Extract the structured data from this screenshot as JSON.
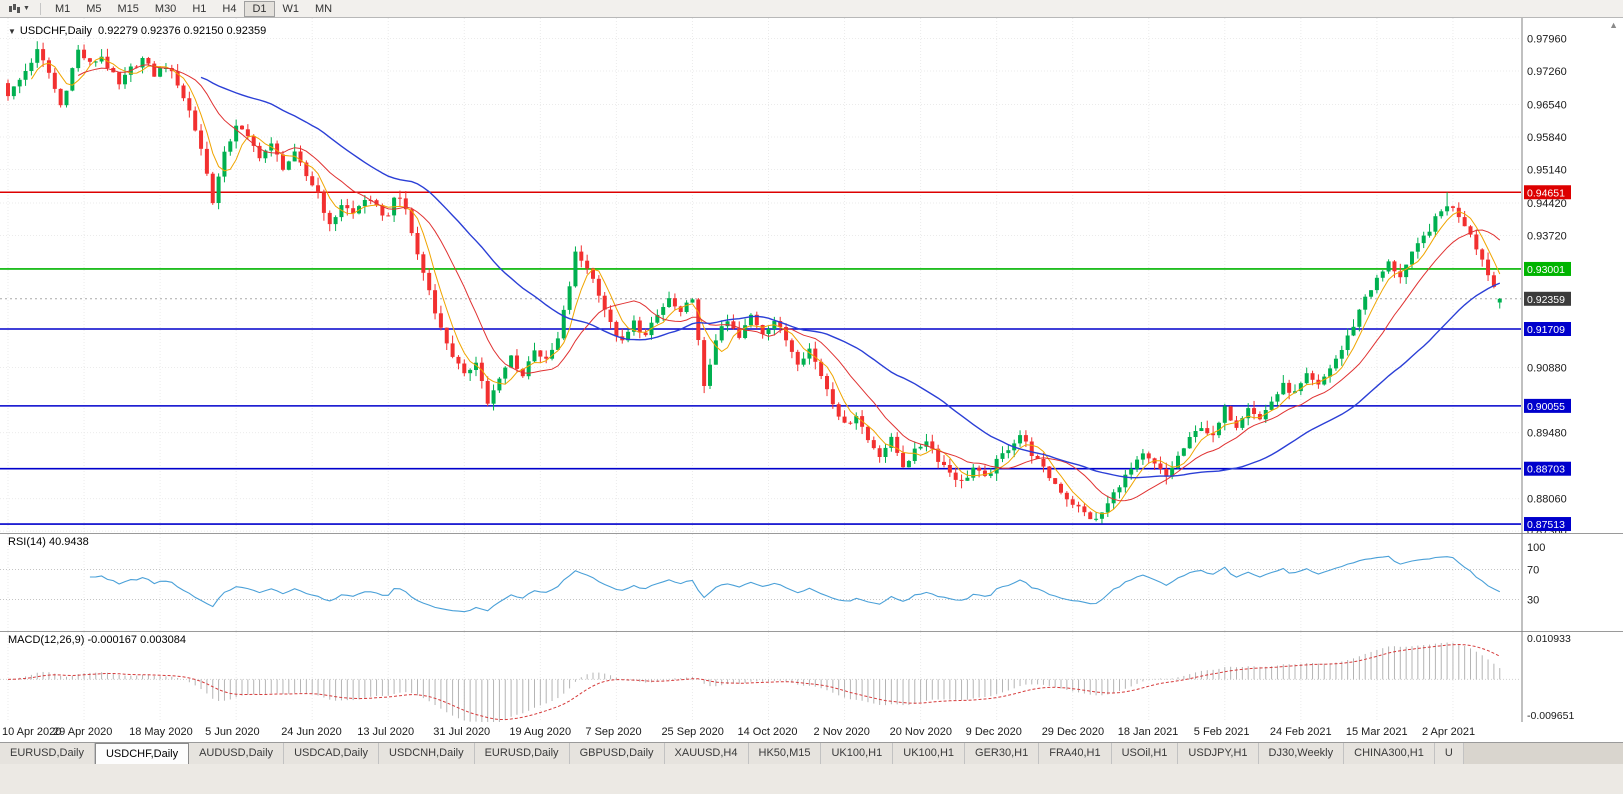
{
  "toolbar": {
    "timeframes": [
      "M1",
      "M5",
      "M15",
      "M30",
      "H1",
      "H4",
      "D1",
      "W1",
      "MN"
    ],
    "active_timeframe": "D1"
  },
  "chart": {
    "title": "USDCHF,Daily",
    "ohlc_text": "0.92279 0.92376 0.92150 0.92359"
  },
  "chart_data": {
    "type": "candlestick",
    "symbol": "USDCHF",
    "timeframe": "Daily",
    "current": {
      "open": 0.92279,
      "high": 0.92376,
      "low": 0.9215,
      "close": 0.92359
    },
    "candle_count": 256,
    "price_range": {
      "top": 0.984,
      "bottom": 0.8732
    },
    "y_axis_ticks": [
      "0.97960",
      "0.97260",
      "0.96540",
      "0.95840",
      "0.95140",
      "0.94420",
      "0.93720",
      "0.90880",
      "0.89480",
      "0.88060",
      "0.87360"
    ],
    "x_axis_dates": [
      "10 Apr 2020",
      "29 Apr 2020",
      "18 May 2020",
      "5 Jun 2020",
      "24 Jun 2020",
      "13 Jul 2020",
      "31 Jul 2020",
      "19 Aug 2020",
      "7 Sep 2020",
      "25 Sep 2020",
      "14 Oct 2020",
      "2 Nov 2020",
      "20 Nov 2020",
      "9 Dec 2020",
      "29 Dec 2020",
      "18 Jan 2021",
      "5 Feb 2021",
      "24 Feb 2021",
      "15 Mar 2021",
      "2 Apr 2021"
    ],
    "horizontal_levels": [
      {
        "price": 0.94651,
        "label": "0.94651",
        "color": "#dd0000",
        "kind": "resistance-line"
      },
      {
        "price": 0.93001,
        "label": "0.93001",
        "color": "#00b400",
        "kind": "support-line"
      },
      {
        "price": 0.92359,
        "label": "0.92359",
        "color": "#3c3c3c",
        "kind": "current-price"
      },
      {
        "price": 0.91709,
        "label": "0.91709",
        "color": "#0000cc",
        "kind": "support-line"
      },
      {
        "price": 0.90055,
        "label": "0.90055",
        "color": "#0000cc",
        "kind": "support-line"
      },
      {
        "price": 0.88703,
        "label": "0.88703",
        "color": "#0000cc",
        "kind": "support-line"
      },
      {
        "price": 0.87513,
        "label": "0.87513",
        "color": "#0000cc",
        "kind": "support-line"
      }
    ],
    "moving_averages": [
      {
        "name": "fast",
        "period": 5,
        "color": "#f0a500",
        "width": 1
      },
      {
        "name": "medium",
        "period": 13,
        "color": "#e03232",
        "width": 1
      },
      {
        "name": "slow",
        "period": 34,
        "color": "#2b3fd6",
        "width": 1.4
      }
    ],
    "colors": {
      "bull": "#00b050",
      "bear": "#f23030",
      "grid": "#ebebeb"
    },
    "close_waypoints": [
      [
        0,
        0.9672
      ],
      [
        2,
        0.9706
      ],
      [
        5,
        0.9768
      ],
      [
        7,
        0.9722
      ],
      [
        9,
        0.9652
      ],
      [
        12,
        0.977
      ],
      [
        14,
        0.974
      ],
      [
        16,
        0.9758
      ],
      [
        19,
        0.9694
      ],
      [
        21,
        0.973
      ],
      [
        23,
        0.9752
      ],
      [
        25,
        0.9718
      ],
      [
        27,
        0.9738
      ],
      [
        29,
        0.97
      ],
      [
        31,
        0.964
      ],
      [
        33,
        0.956
      ],
      [
        35,
        0.9448
      ],
      [
        37,
        0.9545
      ],
      [
        39,
        0.9612
      ],
      [
        41,
        0.958
      ],
      [
        43,
        0.9545
      ],
      [
        45,
        0.9565
      ],
      [
        47,
        0.952
      ],
      [
        49,
        0.9545
      ],
      [
        51,
        0.95
      ],
      [
        53,
        0.9465
      ],
      [
        55,
        0.939
      ],
      [
        57,
        0.944
      ],
      [
        59,
        0.9418
      ],
      [
        61,
        0.9452
      ],
      [
        63,
        0.943
      ],
      [
        65,
        0.9412
      ],
      [
        66,
        0.946
      ],
      [
        68,
        0.9428
      ],
      [
        70,
        0.933
      ],
      [
        72,
        0.9255
      ],
      [
        74,
        0.917
      ],
      [
        76,
        0.9115
      ],
      [
        78,
        0.9068
      ],
      [
        80,
        0.9105
      ],
      [
        82,
        0.9012
      ],
      [
        84,
        0.906
      ],
      [
        86,
        0.9112
      ],
      [
        88,
        0.907
      ],
      [
        90,
        0.913
      ],
      [
        92,
        0.91
      ],
      [
        94,
        0.9148
      ],
      [
        96,
        0.9265
      ],
      [
        97,
        0.9332
      ],
      [
        99,
        0.9305
      ],
      [
        101,
        0.925
      ],
      [
        103,
        0.918
      ],
      [
        105,
        0.914
      ],
      [
        107,
        0.9185
      ],
      [
        109,
        0.9155
      ],
      [
        111,
        0.92
      ],
      [
        113,
        0.9235
      ],
      [
        115,
        0.92
      ],
      [
        117,
        0.9242
      ],
      [
        119,
        0.9042
      ],
      [
        121,
        0.9152
      ],
      [
        123,
        0.9186
      ],
      [
        125,
        0.915
      ],
      [
        127,
        0.92
      ],
      [
        129,
        0.9165
      ],
      [
        131,
        0.919
      ],
      [
        133,
        0.9148
      ],
      [
        135,
        0.9102
      ],
      [
        137,
        0.9128
      ],
      [
        139,
        0.9072
      ],
      [
        141,
        0.9016
      ],
      [
        143,
        0.8962
      ],
      [
        145,
        0.8988
      ],
      [
        147,
        0.8932
      ],
      [
        149,
        0.8902
      ],
      [
        151,
        0.8932
      ],
      [
        153,
        0.8878
      ],
      [
        155,
        0.8906
      ],
      [
        157,
        0.8934
      ],
      [
        159,
        0.8892
      ],
      [
        161,
        0.8864
      ],
      [
        163,
        0.884
      ],
      [
        165,
        0.8872
      ],
      [
        167,
        0.8848
      ],
      [
        169,
        0.8884
      ],
      [
        171,
        0.8916
      ],
      [
        173,
        0.8944
      ],
      [
        175,
        0.8904
      ],
      [
        177,
        0.8868
      ],
      [
        179,
        0.8838
      ],
      [
        181,
        0.8808
      ],
      [
        184,
        0.8774
      ],
      [
        186,
        0.8758
      ],
      [
        188,
        0.8794
      ],
      [
        190,
        0.8838
      ],
      [
        192,
        0.8868
      ],
      [
        194,
        0.8898
      ],
      [
        196,
        0.8878
      ],
      [
        198,
        0.8852
      ],
      [
        200,
        0.8896
      ],
      [
        202,
        0.8932
      ],
      [
        204,
        0.8964
      ],
      [
        206,
        0.8936
      ],
      [
        208,
        0.8998
      ],
      [
        210,
        0.8964
      ],
      [
        212,
        0.9008
      ],
      [
        214,
        0.8976
      ],
      [
        216,
        0.9016
      ],
      [
        218,
        0.9048
      ],
      [
        220,
        0.9032
      ],
      [
        222,
        0.9068
      ],
      [
        224,
        0.9046
      ],
      [
        226,
        0.9088
      ],
      [
        228,
        0.9126
      ],
      [
        230,
        0.918
      ],
      [
        232,
        0.9242
      ],
      [
        234,
        0.9276
      ],
      [
        236,
        0.9312
      ],
      [
        238,
        0.9286
      ],
      [
        240,
        0.933
      ],
      [
        242,
        0.9368
      ],
      [
        244,
        0.9406
      ],
      [
        246,
        0.944
      ],
      [
        248,
        0.9416
      ],
      [
        250,
        0.9378
      ],
      [
        252,
        0.932
      ],
      [
        254,
        0.9262
      ],
      [
        255,
        0.9236
      ]
    ],
    "key_candles": [
      {
        "index": 5,
        "high": 0.979
      },
      {
        "index": 12,
        "high": 0.9782
      },
      {
        "index": 35,
        "low": 0.9438
      },
      {
        "index": 82,
        "low": 0.9005
      },
      {
        "index": 119,
        "low": 0.9033
      },
      {
        "index": 186,
        "low": 0.8757
      },
      {
        "index": 246,
        "high": 0.9465
      },
      {
        "index": 255,
        "open": 0.92279,
        "high": 0.92376,
        "low": 0.9215,
        "close": 0.92359
      }
    ],
    "indicators": [
      {
        "name": "RSI",
        "label": "RSI(14) 40.9438",
        "period": 14,
        "value": 40.9438,
        "levels": [
          "100",
          "70",
          "30"
        ],
        "color": "#4aa0d8"
      },
      {
        "name": "MACD",
        "label": "MACD(12,26,9) -0.000167 0.003084",
        "params": [
          12,
          26,
          9
        ],
        "value": -0.000167,
        "signal": 0.003084,
        "axis_labels": [
          "0.010933",
          "-0.009651"
        ],
        "hist_color": "#b4b4b4",
        "signal_color": "#d63c3c"
      }
    ]
  },
  "tabs": {
    "items": [
      {
        "label": "EURUSD,Daily"
      },
      {
        "label": "USDCHF,Daily",
        "active": true
      },
      {
        "label": "AUDUSD,Daily"
      },
      {
        "label": "USDCAD,Daily"
      },
      {
        "label": "USDCNH,Daily"
      },
      {
        "label": "EURUSD,Daily"
      },
      {
        "label": "GBPUSD,Daily"
      },
      {
        "label": "XAUUSD,H4"
      },
      {
        "label": "HK50,M15"
      },
      {
        "label": "UK100,H1"
      },
      {
        "label": "UK100,H1"
      },
      {
        "label": "GER30,H1"
      },
      {
        "label": "FRA40,H1"
      },
      {
        "label": "USOil,H1"
      },
      {
        "label": "USDJPY,H1"
      },
      {
        "label": "DJ30,Weekly"
      },
      {
        "label": "CHINA300,H1"
      },
      {
        "label": "U"
      }
    ]
  }
}
